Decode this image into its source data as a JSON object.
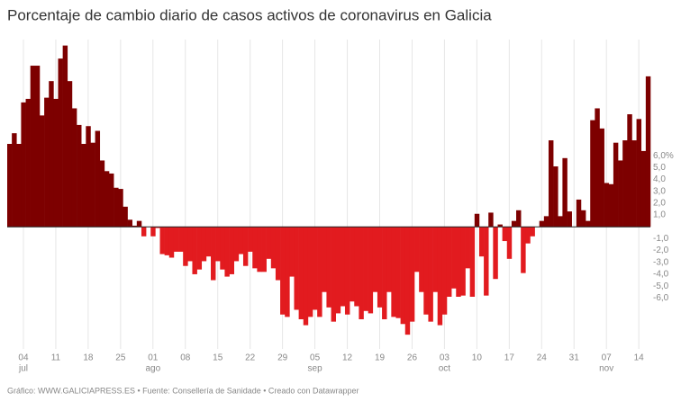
{
  "chart_data": {
    "type": "bar",
    "title": "Porcentaje de cambio diario de casos activos de coronavirus en Galicia",
    "footer": "Gráfico: WWW.GALICIAPRESS.ES • Fuente: Consellería de Sanidade • Creado con Datawrapper",
    "color_positive": "#7d0000",
    "color_negative": "#e21b1f",
    "grid": true,
    "categories": [
      "07-01",
      "07-02",
      "07-03",
      "07-04",
      "07-05",
      "07-06",
      "07-07",
      "07-08",
      "07-09",
      "07-10",
      "07-11",
      "07-12",
      "07-13",
      "07-14",
      "07-15",
      "07-16",
      "07-17",
      "07-18",
      "07-19",
      "07-20",
      "07-21",
      "07-22",
      "07-23",
      "07-24",
      "07-25",
      "07-26",
      "07-27",
      "07-28",
      "07-29",
      "07-30",
      "07-31",
      "08-01",
      "08-02",
      "08-03",
      "08-04",
      "08-05",
      "08-06",
      "08-07",
      "08-08",
      "08-09",
      "08-10",
      "08-11",
      "08-12",
      "08-13",
      "08-14",
      "08-15",
      "08-16",
      "08-17",
      "08-18",
      "08-19",
      "08-20",
      "08-21",
      "08-22",
      "08-23",
      "08-24",
      "08-25",
      "08-26",
      "08-27",
      "08-28",
      "08-29",
      "08-30",
      "08-31",
      "09-01",
      "09-02",
      "09-03",
      "09-04",
      "09-05",
      "09-06",
      "09-07",
      "09-08",
      "09-09",
      "09-10",
      "09-11",
      "09-12",
      "09-13",
      "09-14",
      "09-15",
      "09-16",
      "09-17",
      "09-18",
      "09-19",
      "09-20",
      "09-21",
      "09-22",
      "09-23",
      "09-24",
      "09-25",
      "09-26",
      "09-27",
      "09-28",
      "09-29",
      "09-30",
      "10-01",
      "10-02",
      "10-03",
      "10-04",
      "10-05",
      "10-06",
      "10-07",
      "10-08",
      "10-09",
      "10-10",
      "10-11",
      "10-12",
      "10-13",
      "10-14",
      "10-15",
      "10-16",
      "10-17",
      "10-18",
      "10-19",
      "10-20",
      "10-21",
      "10-22",
      "10-23",
      "10-24",
      "10-25",
      "10-26",
      "10-27",
      "10-28",
      "10-29",
      "10-30",
      "10-31",
      "11-01",
      "11-02",
      "11-03",
      "11-04",
      "11-05",
      "11-06",
      "11-07",
      "11-08",
      "11-09",
      "11-10",
      "11-11",
      "11-12",
      "11-13",
      "11-14",
      "11-15",
      "11-16"
    ],
    "values": [
      7.0,
      7.9,
      7.0,
      10.5,
      10.8,
      13.6,
      13.6,
      9.4,
      10.9,
      12.3,
      10.8,
      14.2,
      15.3,
      12.3,
      10.0,
      8.6,
      7.0,
      8.5,
      7.1,
      8.1,
      5.6,
      4.7,
      4.5,
      3.3,
      3.2,
      1.7,
      0.6,
      0.1,
      0.5,
      -0.8,
      0.0,
      -0.8,
      -0.1,
      -2.3,
      -2.4,
      -2.6,
      -2.1,
      -2.1,
      -3.3,
      -2.9,
      -4.0,
      -3.6,
      -2.9,
      -2.5,
      -4.5,
      -2.9,
      -3.6,
      -4.2,
      -4.0,
      -2.9,
      -2.3,
      -3.3,
      -2.1,
      -3.5,
      -3.8,
      -3.8,
      -2.7,
      -3.5,
      -4.5,
      -7.4,
      -7.6,
      -4.2,
      -7.0,
      -7.8,
      -8.3,
      -7.6,
      -7.0,
      -7.6,
      -5.5,
      -6.8,
      -8.0,
      -7.3,
      -6.7,
      -7.4,
      -6.3,
      -6.7,
      -7.8,
      -7.1,
      -7.3,
      -5.5,
      -6.8,
      -7.8,
      -5.5,
      -7.6,
      -7.7,
      -8.2,
      -9.1,
      -8.0,
      -3.8,
      -5.5,
      -7.4,
      -8.0,
      -5.5,
      -8.3,
      -7.4,
      -5.9,
      -5.2,
      -5.9,
      -5.8,
      -3.5,
      -5.9,
      1.1,
      -2.5,
      -5.8,
      1.2,
      -4.4,
      0.2,
      -1.2,
      -2.7,
      0.5,
      1.4,
      -3.9,
      -1.4,
      -0.8,
      0.0,
      0.5,
      0.9,
      7.3,
      5.1,
      0.9,
      5.8,
      1.3,
      0.0,
      2.3,
      1.4,
      0.5,
      9.0,
      10.0,
      8.3,
      3.7,
      3.6,
      7.1,
      5.6,
      7.3,
      9.5,
      7.3,
      9.1,
      6.4,
      12.7
    ],
    "ylim": [
      -10,
      15.5
    ],
    "yticks": [
      {
        "value": 6,
        "label": "6,0%"
      },
      {
        "value": 5,
        "label": "5,0"
      },
      {
        "value": 4,
        "label": "4,0"
      },
      {
        "value": 3,
        "label": "3,0"
      },
      {
        "value": 2,
        "label": "2,0"
      },
      {
        "value": 1,
        "label": "1,0"
      },
      {
        "value": -1,
        "label": "-1,0"
      },
      {
        "value": -2,
        "label": "-2,0"
      },
      {
        "value": -3,
        "label": "-3,0"
      },
      {
        "value": -4,
        "label": "-4,0"
      },
      {
        "value": -5,
        "label": "-5,0"
      },
      {
        "value": -6,
        "label": "-6,0"
      }
    ],
    "xticks": [
      {
        "value": "07-04",
        "label": "04"
      },
      {
        "value": "07-11",
        "label": "11"
      },
      {
        "value": "07-18",
        "label": "18"
      },
      {
        "value": "07-25",
        "label": "25"
      },
      {
        "value": "08-01",
        "label": "01"
      },
      {
        "value": "08-08",
        "label": "08"
      },
      {
        "value": "08-15",
        "label": "15"
      },
      {
        "value": "08-22",
        "label": "22"
      },
      {
        "value": "08-29",
        "label": "29"
      },
      {
        "value": "09-05",
        "label": "05"
      },
      {
        "value": "09-12",
        "label": "12"
      },
      {
        "value": "09-19",
        "label": "19"
      },
      {
        "value": "09-26",
        "label": "26"
      },
      {
        "value": "10-03",
        "label": "03"
      },
      {
        "value": "10-10",
        "label": "10"
      },
      {
        "value": "10-17",
        "label": "17"
      },
      {
        "value": "10-24",
        "label": "24"
      },
      {
        "value": "10-31",
        "label": "31"
      },
      {
        "value": "11-07",
        "label": "07"
      },
      {
        "value": "11-14",
        "label": "14"
      }
    ],
    "month_labels": [
      {
        "value": "07-04",
        "label": "jul"
      },
      {
        "value": "08-01",
        "label": "ago"
      },
      {
        "value": "09-05",
        "label": "sep"
      },
      {
        "value": "10-03",
        "label": "oct"
      },
      {
        "value": "11-07",
        "label": "nov"
      }
    ]
  }
}
